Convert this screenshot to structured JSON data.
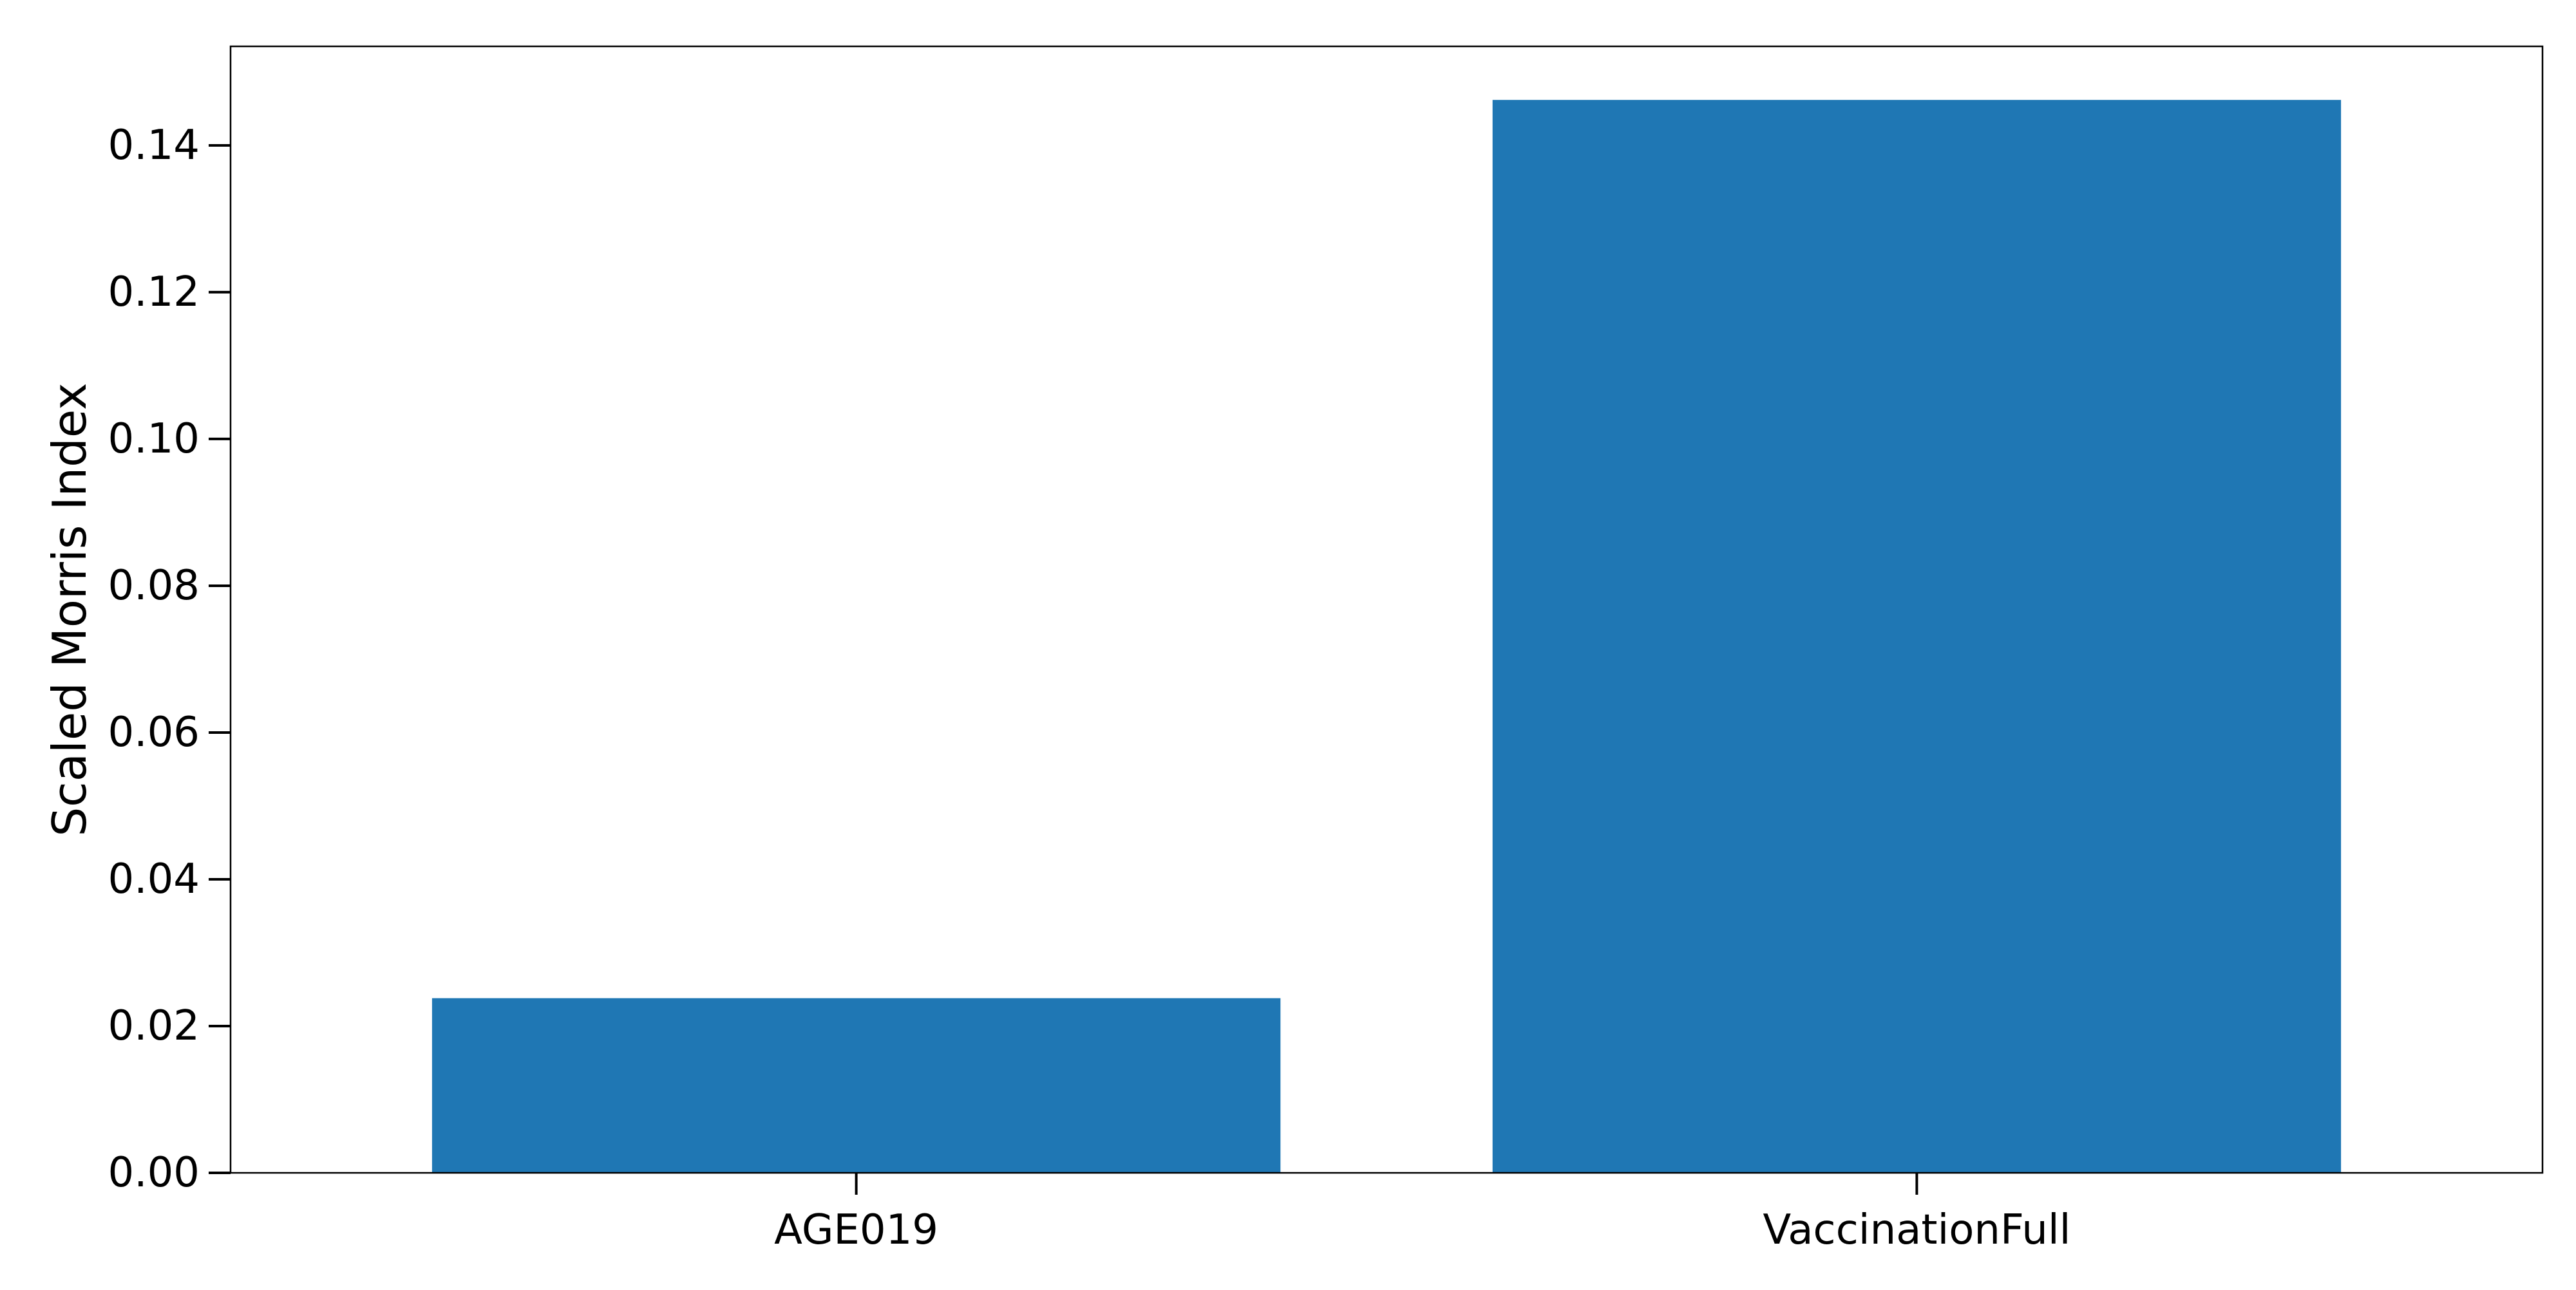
{
  "chart_data": {
    "type": "bar",
    "title": "",
    "xlabel": "",
    "ylabel": "Scaled Morris Index",
    "categories": [
      "AGE019",
      "VaccinationFull"
    ],
    "values": [
      0.0238,
      0.1462
    ],
    "ylim": [
      0.0,
      0.1535
    ],
    "yticks": [
      0.0,
      0.02,
      0.04,
      0.06,
      0.08,
      0.1,
      0.12,
      0.14
    ],
    "ytick_labels": [
      "0.00",
      "0.02",
      "0.04",
      "0.06",
      "0.08",
      "0.10",
      "0.12",
      "0.14"
    ],
    "bar_color": "#1f77b4",
    "grid": false,
    "legend": "none"
  }
}
